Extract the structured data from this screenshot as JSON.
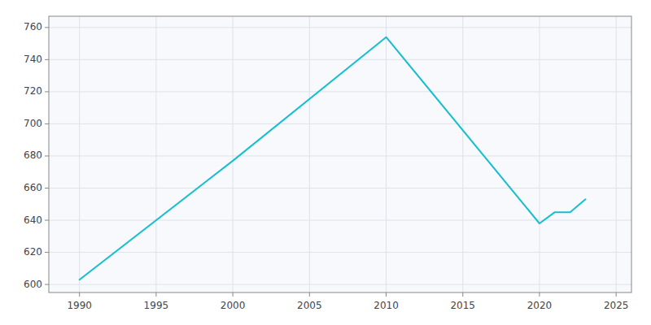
{
  "chart_data": {
    "type": "line",
    "x": [
      1990,
      2000,
      2010,
      2020,
      2021,
      2022,
      2023
    ],
    "values": [
      603,
      677,
      754,
      638,
      645,
      645,
      653
    ],
    "color": "#17BECF",
    "xlim": [
      1988,
      2026
    ],
    "ylim": [
      595,
      767
    ],
    "xticks": [
      1990,
      1995,
      2000,
      2005,
      2010,
      2015,
      2020,
      2025
    ],
    "yticks": [
      600,
      620,
      640,
      660,
      680,
      700,
      720,
      740,
      760
    ],
    "grid": true
  }
}
